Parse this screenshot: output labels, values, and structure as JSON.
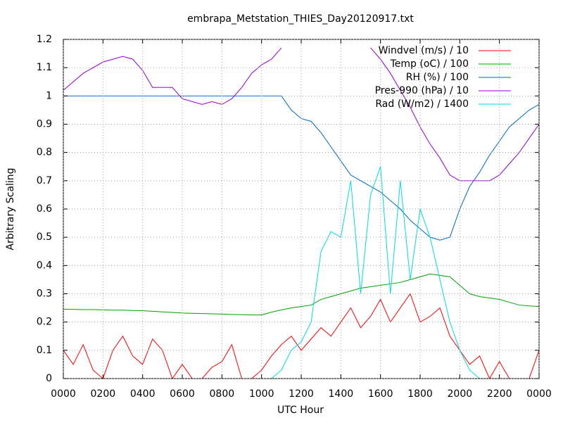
{
  "chart_data": {
    "type": "line",
    "title": "embrapa_Metstation_THIES_Day20120917.txt",
    "xlabel": "UTC Hour",
    "ylabel": "Arbitrary Scaling",
    "x": [
      0,
      0.5,
      1,
      1.5,
      2,
      2.5,
      3,
      3.5,
      4,
      4.5,
      5,
      5.5,
      6,
      6.5,
      7,
      7.5,
      8,
      8.5,
      9,
      9.5,
      10,
      10.5,
      11,
      11.5,
      12,
      12.5,
      13,
      13.5,
      14,
      14.5,
      15,
      15.5,
      16,
      16.5,
      17,
      17.5,
      18,
      18.5,
      19,
      19.5,
      20,
      20.5,
      21,
      21.5,
      22,
      22.5,
      23,
      23.5,
      24
    ],
    "series": [
      {
        "name": "Windvel (m/s) / 10",
        "color": "#ff0000",
        "values": [
          0.1,
          0.05,
          0.12,
          0.03,
          0,
          0.1,
          0.15,
          0.08,
          0.05,
          0.14,
          0.1,
          0,
          0.05,
          0,
          0,
          0.04,
          0.06,
          0.12,
          0,
          0,
          0.03,
          0.08,
          0.12,
          0.15,
          0.1,
          0.14,
          0.18,
          0.15,
          0.2,
          0.25,
          0.18,
          0.22,
          0.28,
          0.2,
          0.25,
          0.3,
          0.2,
          0.22,
          0.25,
          0.15,
          0.1,
          0.05,
          0.08,
          0,
          0.06,
          0,
          0,
          0,
          0.1
        ]
      },
      {
        "name": "Temp (oC) / 100",
        "color": "#00a000",
        "values": [
          0.245,
          0.245,
          0.244,
          0.244,
          0.243,
          0.242,
          0.242,
          0.241,
          0.24,
          0.238,
          0.236,
          0.234,
          0.232,
          0.231,
          0.23,
          0.229,
          0.228,
          0.227,
          0.226,
          0.225,
          0.225,
          0.235,
          0.243,
          0.25,
          0.255,
          0.26,
          0.28,
          0.29,
          0.3,
          0.31,
          0.32,
          0.325,
          0.33,
          0.335,
          0.34,
          0.35,
          0.36,
          0.37,
          0.365,
          0.36,
          0.33,
          0.3,
          0.29,
          0.285,
          0.28,
          0.27,
          0.26,
          0.257,
          0.255
        ]
      },
      {
        "name": "RH (%) / 100",
        "color": "#0066cc",
        "values": [
          1,
          1,
          1,
          1,
          1,
          1,
          1,
          1,
          1,
          1,
          1,
          1,
          1,
          1,
          1,
          1,
          1,
          1,
          1,
          1,
          1,
          1,
          1,
          0.95,
          0.92,
          0.91,
          0.87,
          0.82,
          0.77,
          0.72,
          0.7,
          0.68,
          0.66,
          0.63,
          0.6,
          0.56,
          0.53,
          0.5,
          0.49,
          0.5,
          0.6,
          0.68,
          0.73,
          0.79,
          0.84,
          0.89,
          0.92,
          0.95,
          0.97
        ]
      },
      {
        "name": "Pres-990 (hPa) / 10",
        "color": "#9400d3",
        "values": [
          1.02,
          1.05,
          1.08,
          1.1,
          1.12,
          1.13,
          1.14,
          1.13,
          1.09,
          1.03,
          1.03,
          1.03,
          0.99,
          0.98,
          0.97,
          0.98,
          0.97,
          0.99,
          1.03,
          1.08,
          1.11,
          1.13,
          1.17,
          null,
          null,
          null,
          null,
          null,
          null,
          null,
          null,
          1.17,
          1.13,
          1.08,
          1.02,
          0.96,
          0.89,
          0.83,
          0.78,
          0.72,
          0.7,
          0.7,
          0.7,
          0.7,
          0.72,
          0.76,
          0.8,
          0.85,
          0.9
        ]
      },
      {
        "name": "Rad (W/m2) / 1400",
        "color": "#00dddd",
        "values": [
          0,
          0,
          0,
          0,
          0,
          0,
          0,
          0,
          0,
          0,
          0,
          0,
          0,
          0,
          0,
          0,
          0,
          0,
          0,
          0,
          0,
          0,
          0.03,
          0.1,
          0.13,
          0.2,
          0.45,
          0.52,
          0.5,
          0.7,
          0.3,
          0.65,
          0.75,
          0.3,
          0.7,
          0.35,
          0.6,
          0.5,
          0.35,
          0.2,
          0.1,
          0.03,
          0,
          0,
          0,
          0,
          0,
          0,
          0
        ]
      }
    ],
    "xlim": [
      0,
      24
    ],
    "xticks": [
      {
        "value": 0,
        "label": "0000"
      },
      {
        "value": 2,
        "label": "0200"
      },
      {
        "value": 4,
        "label": "0400"
      },
      {
        "value": 6,
        "label": "0600"
      },
      {
        "value": 8,
        "label": "0800"
      },
      {
        "value": 10,
        "label": "1000"
      },
      {
        "value": 12,
        "label": "1200"
      },
      {
        "value": 14,
        "label": "1400"
      },
      {
        "value": 16,
        "label": "1600"
      },
      {
        "value": 18,
        "label": "1800"
      },
      {
        "value": 20,
        "label": "2000"
      },
      {
        "value": 22,
        "label": "2200"
      },
      {
        "value": 24,
        "label": "0000"
      }
    ],
    "ylim": [
      0,
      1.2
    ],
    "yticks": [
      0,
      0.1,
      0.2,
      0.3,
      0.4,
      0.5,
      0.6,
      0.7,
      0.8,
      0.9,
      1,
      1.1,
      1.2
    ],
    "grid": true,
    "legend": "top-right"
  }
}
